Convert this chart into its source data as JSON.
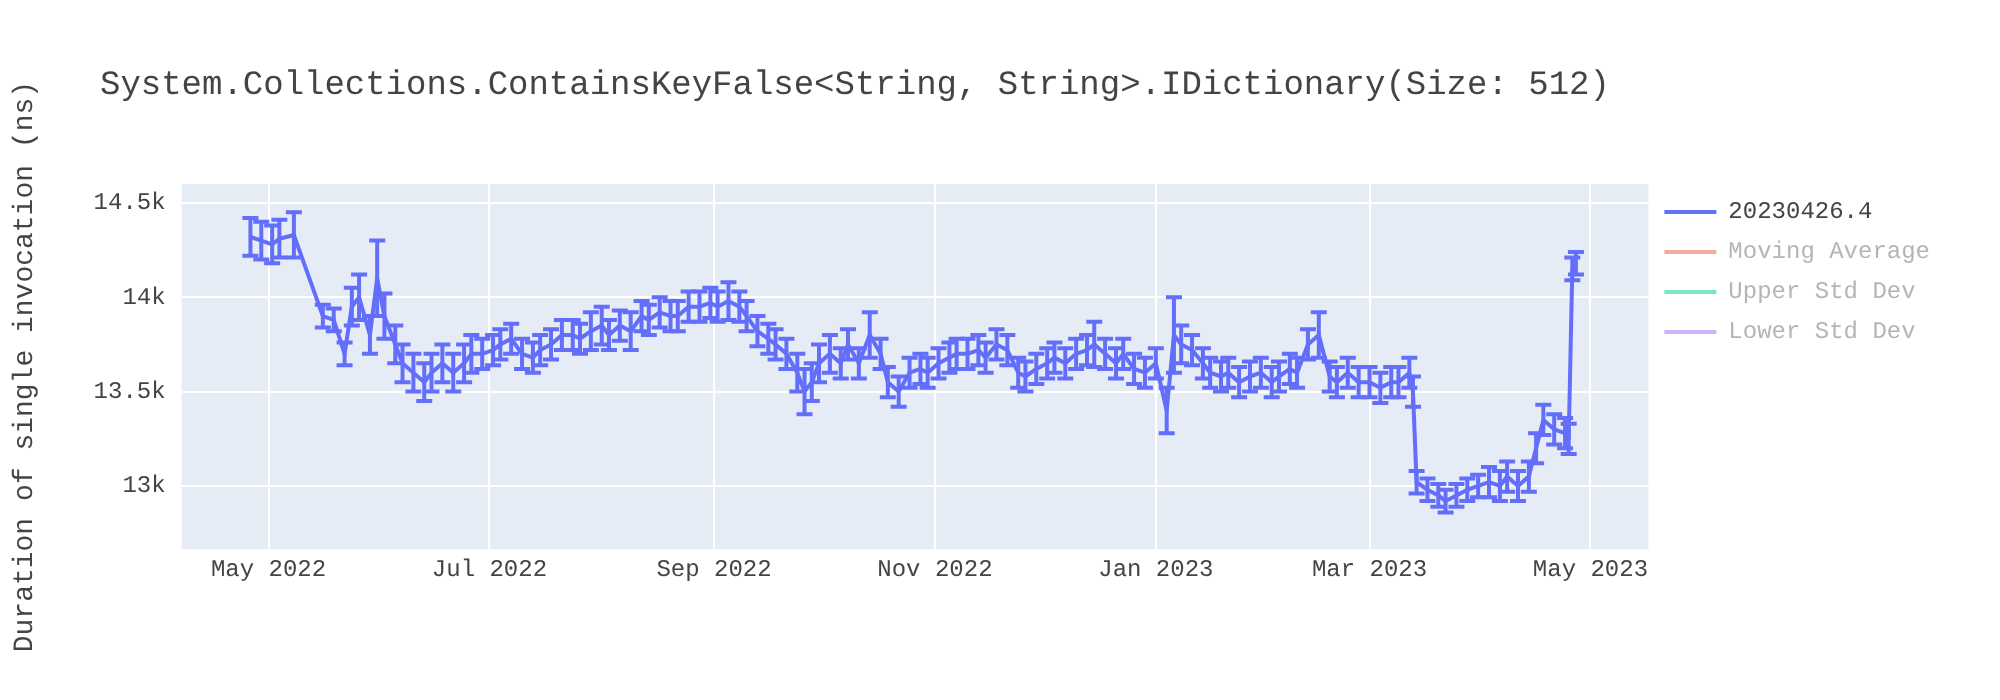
{
  "chart_data": {
    "type": "line",
    "title": "System.Collections.ContainsKeyFalse<String, String>.IDictionary(Size: 512)",
    "ylabel": "Duration of single invocation (ns)",
    "xlim": [
      "2022-04-07",
      "2023-05-17"
    ],
    "xticks": [
      {
        "value": "2022-05-01",
        "label": "May 2022"
      },
      {
        "value": "2022-07-01",
        "label": "Jul 2022"
      },
      {
        "value": "2022-09-01",
        "label": "Sep 2022"
      },
      {
        "value": "2022-11-01",
        "label": "Nov 2022"
      },
      {
        "value": "2023-01-01",
        "label": "Jan 2023"
      },
      {
        "value": "2023-03-01",
        "label": "Mar 2023"
      },
      {
        "value": "2023-05-01",
        "label": "May 2023"
      }
    ],
    "ylim": [
      12665,
      14600
    ],
    "yticks": [
      {
        "value": 13000,
        "label": "13k"
      },
      {
        "value": 13500,
        "label": "13.5k"
      },
      {
        "value": 14000,
        "label": "14k"
      },
      {
        "value": 14500,
        "label": "14.5k"
      }
    ],
    "grid": true,
    "legend": "top right",
    "marker": "none",
    "line_style": "solid",
    "x": [
      "2022-04-26",
      "2022-04-29",
      "2022-05-02",
      "2022-05-04",
      "2022-05-08",
      "2022-05-16",
      "2022-05-19",
      "2022-05-22",
      "2022-05-24",
      "2022-05-26",
      "2022-05-29",
      "2022-05-31",
      "2022-06-02",
      "2022-06-05",
      "2022-06-07",
      "2022-06-10",
      "2022-06-13",
      "2022-06-15",
      "2022-06-18",
      "2022-06-21",
      "2022-06-24",
      "2022-06-26",
      "2022-06-29",
      "2022-07-02",
      "2022-07-04",
      "2022-07-07",
      "2022-07-10",
      "2022-07-13",
      "2022-07-15",
      "2022-07-18",
      "2022-07-21",
      "2022-07-24",
      "2022-07-26",
      "2022-07-29",
      "2022-08-01",
      "2022-08-03",
      "2022-08-06",
      "2022-08-09",
      "2022-08-12",
      "2022-08-14",
      "2022-08-17",
      "2022-08-20",
      "2022-08-22",
      "2022-08-25",
      "2022-08-28",
      "2022-08-31",
      "2022-09-02",
      "2022-09-05",
      "2022-09-08",
      "2022-09-10",
      "2022-09-13",
      "2022-09-16",
      "2022-09-18",
      "2022-09-21",
      "2022-09-24",
      "2022-09-26",
      "2022-09-28",
      "2022-09-30",
      "2022-10-03",
      "2022-10-06",
      "2022-10-08",
      "2022-10-11",
      "2022-10-14",
      "2022-10-17",
      "2022-10-19",
      "2022-10-22",
      "2022-10-25",
      "2022-10-28",
      "2022-10-30",
      "2022-11-02",
      "2022-11-05",
      "2022-11-07",
      "2022-11-10",
      "2022-11-13",
      "2022-11-15",
      "2022-11-18",
      "2022-11-21",
      "2022-11-24",
      "2022-11-26",
      "2022-11-29",
      "2022-12-02",
      "2022-12-04",
      "2022-12-07",
      "2022-12-10",
      "2022-12-13",
      "2022-12-15",
      "2022-12-18",
      "2022-12-21",
      "2022-12-23",
      "2022-12-26",
      "2022-12-29",
      "2023-01-01",
      "2023-01-04",
      "2023-01-06",
      "2023-01-08",
      "2023-01-11",
      "2023-01-14",
      "2023-01-16",
      "2023-01-19",
      "2023-01-21",
      "2023-01-24",
      "2023-01-27",
      "2023-01-30",
      "2023-02-02",
      "2023-02-04",
      "2023-02-07",
      "2023-02-09",
      "2023-02-12",
      "2023-02-15",
      "2023-02-18",
      "2023-02-20",
      "2023-02-23",
      "2023-02-26",
      "2023-03-01",
      "2023-03-04",
      "2023-03-07",
      "2023-03-09",
      "2023-03-12",
      "2023-03-13",
      "2023-03-14",
      "2023-03-17",
      "2023-03-20",
      "2023-03-22",
      "2023-03-25",
      "2023-03-28",
      "2023-03-31",
      "2023-04-03",
      "2023-04-06",
      "2023-04-08",
      "2023-04-11",
      "2023-04-14",
      "2023-04-16",
      "2023-04-18",
      "2023-04-21",
      "2023-04-24",
      "2023-04-25",
      "2023-04-26",
      "2023-04-27"
    ],
    "series": [
      {
        "name": "20230426.4",
        "color": "#636efa",
        "values": [
          14320,
          14300,
          14280,
          14310,
          14330,
          13900,
          13880,
          13700,
          13950,
          14000,
          13800,
          14100,
          13900,
          13750,
          13650,
          13600,
          13550,
          13600,
          13650,
          13600,
          13650,
          13700,
          13700,
          13720,
          13750,
          13780,
          13700,
          13680,
          13720,
          13750,
          13800,
          13800,
          13780,
          13820,
          13850,
          13800,
          13850,
          13820,
          13900,
          13880,
          13920,
          13900,
          13900,
          13950,
          13950,
          13970,
          13950,
          13980,
          13950,
          13900,
          13820,
          13780,
          13750,
          13700,
          13600,
          13500,
          13550,
          13650,
          13700,
          13650,
          13750,
          13650,
          13800,
          13700,
          13550,
          13500,
          13600,
          13620,
          13600,
          13650,
          13680,
          13700,
          13700,
          13720,
          13680,
          13750,
          13720,
          13600,
          13580,
          13620,
          13650,
          13680,
          13650,
          13700,
          13720,
          13750,
          13700,
          13650,
          13700,
          13620,
          13600,
          13650,
          13400,
          13800,
          13750,
          13720,
          13650,
          13600,
          13580,
          13600,
          13550,
          13580,
          13600,
          13550,
          13580,
          13620,
          13600,
          13750,
          13800,
          13580,
          13550,
          13600,
          13550,
          13550,
          13520,
          13550,
          13550,
          13600,
          13500,
          13020,
          12980,
          12950,
          12920,
          12950,
          12980,
          13000,
          13020,
          13000,
          13050,
          13000,
          13050,
          13200,
          13350,
          13300,
          13280,
          13250,
          14150,
          14180
        ],
        "errors": [
          100,
          100,
          100,
          100,
          120,
          60,
          60,
          60,
          100,
          120,
          100,
          200,
          120,
          100,
          100,
          100,
          100,
          100,
          100,
          100,
          100,
          100,
          80,
          80,
          80,
          80,
          80,
          80,
          80,
          80,
          80,
          80,
          80,
          100,
          100,
          80,
          80,
          100,
          80,
          80,
          80,
          80,
          80,
          80,
          80,
          80,
          80,
          100,
          80,
          80,
          80,
          80,
          80,
          80,
          100,
          120,
          100,
          100,
          100,
          80,
          80,
          80,
          120,
          80,
          80,
          80,
          80,
          80,
          80,
          80,
          80,
          80,
          80,
          80,
          80,
          80,
          80,
          80,
          80,
          80,
          80,
          80,
          80,
          80,
          80,
          120,
          80,
          80,
          80,
          80,
          80,
          80,
          120,
          200,
          100,
          80,
          80,
          80,
          80,
          80,
          80,
          80,
          80,
          80,
          80,
          80,
          80,
          80,
          120,
          80,
          80,
          80,
          80,
          80,
          80,
          80,
          80,
          80,
          80,
          60,
          60,
          60,
          60,
          60,
          60,
          60,
          80,
          80,
          80,
          80,
          80,
          80,
          80,
          80,
          80,
          80,
          60,
          60
        ]
      },
      {
        "name": "Moving Average",
        "color": "#f7aa9d",
        "values": [
          null,
          null,
          null,
          null,
          null,
          null,
          null,
          null,
          null,
          null,
          null,
          null,
          null,
          null,
          null,
          null,
          null,
          null,
          null,
          null,
          null,
          null,
          null,
          null,
          null,
          null,
          null,
          null,
          null,
          null,
          null,
          null,
          null,
          null,
          null,
          null,
          null,
          null,
          null,
          null,
          null,
          null,
          null,
          null,
          null,
          null,
          null,
          null,
          null,
          null,
          null,
          null,
          null,
          null,
          null,
          null,
          null,
          null,
          null,
          null,
          null,
          null,
          null,
          null,
          null,
          null,
          null,
          null,
          null,
          null,
          null,
          null,
          null,
          null,
          null,
          null,
          null,
          null,
          null,
          null,
          null,
          null,
          null,
          null,
          null,
          null,
          null,
          null,
          null,
          null,
          null,
          null,
          null,
          null,
          null,
          null,
          null,
          null,
          null,
          null,
          null,
          null,
          null,
          null,
          null,
          null,
          null,
          null,
          null,
          null,
          null,
          null,
          null,
          null,
          null,
          null,
          null,
          null,
          null,
          null,
          null,
          null,
          null,
          null,
          null,
          null,
          null,
          null,
          null,
          null,
          null,
          null,
          null,
          null,
          null,
          null,
          null,
          null
        ]
      },
      {
        "name": "Upper Std Dev",
        "color": "#7fe5ca",
        "values": [
          null,
          null,
          null,
          null,
          null,
          null,
          null,
          null,
          null,
          null,
          null,
          null,
          null,
          null,
          null,
          null,
          null,
          null,
          null,
          null,
          null,
          null,
          null,
          null,
          null,
          null,
          null,
          null,
          null,
          null,
          null,
          null,
          null,
          null,
          null,
          null,
          null,
          null,
          null,
          null,
          null,
          null,
          null,
          null,
          null,
          null,
          null,
          null,
          null,
          null,
          null,
          null,
          null,
          null,
          null,
          null,
          null,
          null,
          null,
          null,
          null,
          null,
          null,
          null,
          null,
          null,
          null,
          null,
          null,
          null,
          null,
          null,
          null,
          null,
          null,
          null,
          null,
          null,
          null,
          null,
          null,
          null,
          null,
          null,
          null,
          null,
          null,
          null,
          null,
          null,
          null,
          null,
          null,
          null,
          null,
          null,
          null,
          null,
          null,
          null,
          null,
          null,
          null,
          null,
          null,
          null,
          null,
          null,
          null,
          null,
          null,
          null,
          null,
          null,
          null,
          null,
          null,
          null,
          null,
          null,
          null,
          null,
          null,
          null,
          null,
          null,
          null,
          null,
          null,
          null,
          null,
          null,
          null,
          null,
          null,
          null,
          null,
          null
        ]
      },
      {
        "name": "Lower Std Dev",
        "color": "#d5b1fc",
        "values": [
          null,
          null,
          null,
          null,
          null,
          null,
          null,
          null,
          null,
          null,
          null,
          null,
          null,
          null,
          null,
          null,
          null,
          null,
          null,
          null,
          null,
          null,
          null,
          null,
          null,
          null,
          null,
          null,
          null,
          null,
          null,
          null,
          null,
          null,
          null,
          null,
          null,
          null,
          null,
          null,
          null,
          null,
          null,
          null,
          null,
          null,
          null,
          null,
          null,
          null,
          null,
          null,
          null,
          null,
          null,
          null,
          null,
          null,
          null,
          null,
          null,
          null,
          null,
          null,
          null,
          null,
          null,
          null,
          null,
          null,
          null,
          null,
          null,
          null,
          null,
          null,
          null,
          null,
          null,
          null,
          null,
          null,
          null,
          null,
          null,
          null,
          null,
          null,
          null,
          null,
          null,
          null,
          null,
          null,
          null,
          null,
          null,
          null,
          null,
          null,
          null,
          null,
          null,
          null,
          null,
          null,
          null,
          null,
          null,
          null,
          null,
          null,
          null,
          null,
          null,
          null,
          null,
          null,
          null,
          null,
          null,
          null,
          null,
          null,
          null,
          null,
          null,
          null,
          null,
          null,
          null,
          null,
          null,
          null,
          null,
          null,
          null,
          null
        ]
      }
    ]
  }
}
